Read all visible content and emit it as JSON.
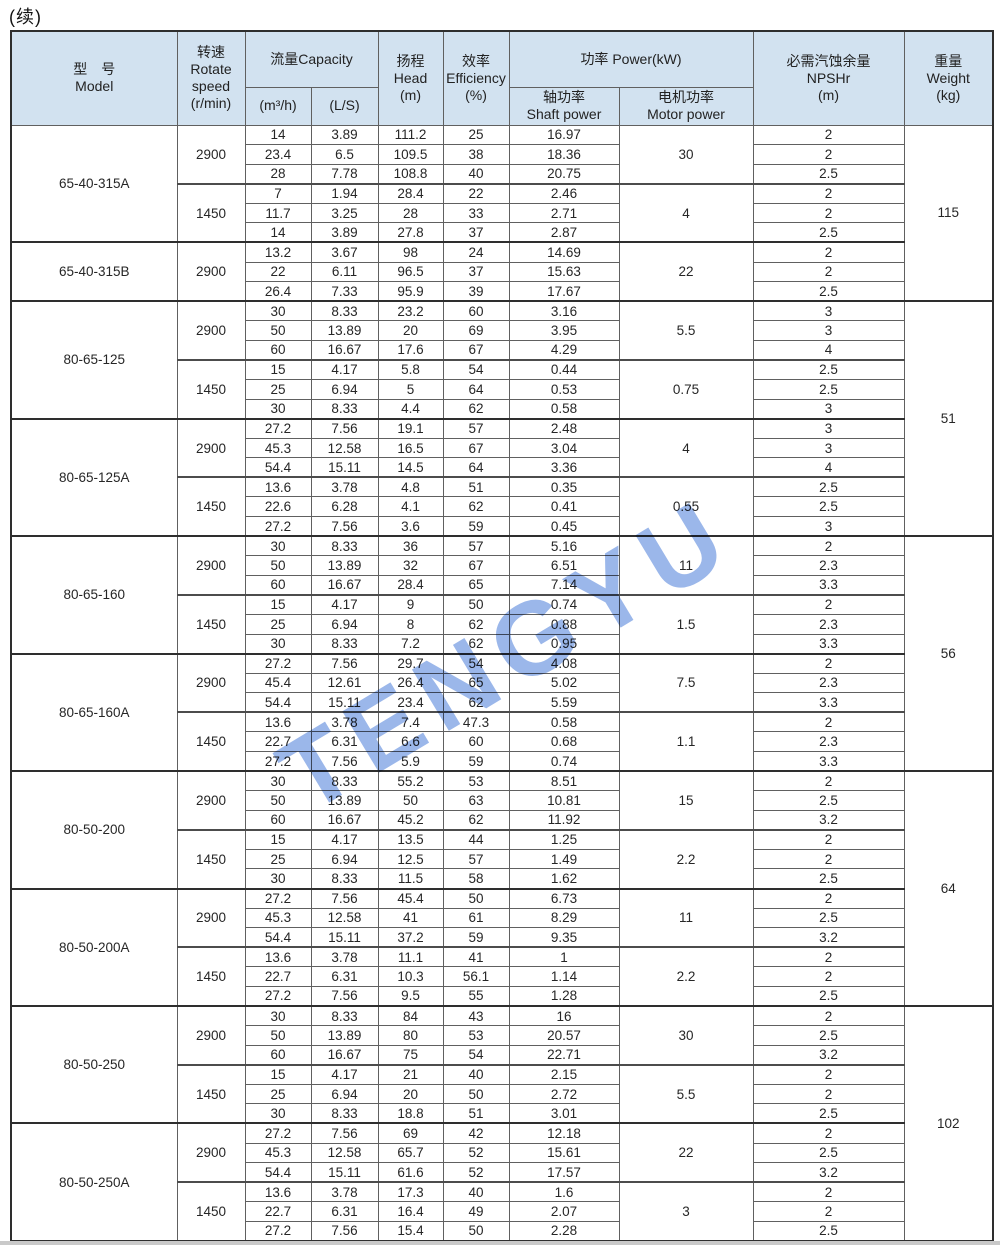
{
  "page": {
    "continued_label": "(续)"
  },
  "watermark": {
    "text": "TENGYU",
    "color": "#9bb7ea"
  },
  "table": {
    "header": {
      "model": [
        "型　号",
        "Model"
      ],
      "speed": [
        "转速",
        "Rotate",
        "speed",
        "(r/min)"
      ],
      "capacity": "流量Capacity",
      "capacity_units": [
        "(m³/h)",
        "(L/S)"
      ],
      "head": [
        "扬程",
        "Head",
        "(m)"
      ],
      "efficiency": [
        "效率",
        "Efficiency",
        "(%)"
      ],
      "power": "功率 Power(kW)",
      "shaft_power": [
        "轴功率",
        "Shaft power"
      ],
      "motor_power": [
        "电机功率",
        "Motor power"
      ],
      "npshr": [
        "必需汽蚀余量",
        "NPSHr",
        "(m)"
      ],
      "weight": [
        "重量",
        "Weight",
        "(kg)"
      ]
    },
    "row_fields": [
      "m3h",
      "ls",
      "head",
      "efficiency",
      "shaft_power",
      "npshr"
    ],
    "weight_groups": [
      {
        "weight": "115",
        "models": [
          {
            "name": "65-40-315A",
            "speed_groups": [
              {
                "speed": "2900",
                "motor_power": "30",
                "rows": [
                  [
                    "14",
                    "3.89",
                    "111.2",
                    "25",
                    "16.97",
                    "2"
                  ],
                  [
                    "23.4",
                    "6.5",
                    "109.5",
                    "38",
                    "18.36",
                    "2"
                  ],
                  [
                    "28",
                    "7.78",
                    "108.8",
                    "40",
                    "20.75",
                    "2.5"
                  ]
                ]
              },
              {
                "speed": "1450",
                "motor_power": "4",
                "rows": [
                  [
                    "7",
                    "1.94",
                    "28.4",
                    "22",
                    "2.46",
                    "2"
                  ],
                  [
                    "11.7",
                    "3.25",
                    "28",
                    "33",
                    "2.71",
                    "2"
                  ],
                  [
                    "14",
                    "3.89",
                    "27.8",
                    "37",
                    "2.87",
                    "2.5"
                  ]
                ]
              }
            ]
          },
          {
            "name": "65-40-315B",
            "speed_groups": [
              {
                "speed": "2900",
                "motor_power": "22",
                "rows": [
                  [
                    "13.2",
                    "3.67",
                    "98",
                    "24",
                    "14.69",
                    "2"
                  ],
                  [
                    "22",
                    "6.11",
                    "96.5",
                    "37",
                    "15.63",
                    "2"
                  ],
                  [
                    "26.4",
                    "7.33",
                    "95.9",
                    "39",
                    "17.67",
                    "2.5"
                  ]
                ]
              }
            ]
          }
        ]
      },
      {
        "weight": "51",
        "models": [
          {
            "name": "80-65-125",
            "speed_groups": [
              {
                "speed": "2900",
                "motor_power": "5.5",
                "rows": [
                  [
                    "30",
                    "8.33",
                    "23.2",
                    "60",
                    "3.16",
                    "3"
                  ],
                  [
                    "50",
                    "13.89",
                    "20",
                    "69",
                    "3.95",
                    "3"
                  ],
                  [
                    "60",
                    "16.67",
                    "17.6",
                    "67",
                    "4.29",
                    "4"
                  ]
                ]
              },
              {
                "speed": "1450",
                "motor_power": "0.75",
                "rows": [
                  [
                    "15",
                    "4.17",
                    "5.8",
                    "54",
                    "0.44",
                    "2.5"
                  ],
                  [
                    "25",
                    "6.94",
                    "5",
                    "64",
                    "0.53",
                    "2.5"
                  ],
                  [
                    "30",
                    "8.33",
                    "4.4",
                    "62",
                    "0.58",
                    "3"
                  ]
                ]
              }
            ]
          },
          {
            "name": "80-65-125A",
            "speed_groups": [
              {
                "speed": "2900",
                "motor_power": "4",
                "rows": [
                  [
                    "27.2",
                    "7.56",
                    "19.1",
                    "57",
                    "2.48",
                    "3"
                  ],
                  [
                    "45.3",
                    "12.58",
                    "16.5",
                    "67",
                    "3.04",
                    "3"
                  ],
                  [
                    "54.4",
                    "15.11",
                    "14.5",
                    "64",
                    "3.36",
                    "4"
                  ]
                ]
              },
              {
                "speed": "1450",
                "motor_power": "0.55",
                "rows": [
                  [
                    "13.6",
                    "3.78",
                    "4.8",
                    "51",
                    "0.35",
                    "2.5"
                  ],
                  [
                    "22.6",
                    "6.28",
                    "4.1",
                    "62",
                    "0.41",
                    "2.5"
                  ],
                  [
                    "27.2",
                    "7.56",
                    "3.6",
                    "59",
                    "0.45",
                    "3"
                  ]
                ]
              }
            ]
          }
        ]
      },
      {
        "weight": "56",
        "models": [
          {
            "name": "80-65-160",
            "speed_groups": [
              {
                "speed": "2900",
                "motor_power": "11",
                "rows": [
                  [
                    "30",
                    "8.33",
                    "36",
                    "57",
                    "5.16",
                    "2"
                  ],
                  [
                    "50",
                    "13.89",
                    "32",
                    "67",
                    "6.51",
                    "2.3"
                  ],
                  [
                    "60",
                    "16.67",
                    "28.4",
                    "65",
                    "7.14",
                    "3.3"
                  ]
                ]
              },
              {
                "speed": "1450",
                "motor_power": "1.5",
                "rows": [
                  [
                    "15",
                    "4.17",
                    "9",
                    "50",
                    "0.74",
                    "2"
                  ],
                  [
                    "25",
                    "6.94",
                    "8",
                    "62",
                    "0.88",
                    "2.3"
                  ],
                  [
                    "30",
                    "8.33",
                    "7.2",
                    "62",
                    "0.95",
                    "3.3"
                  ]
                ]
              }
            ]
          },
          {
            "name": "80-65-160A",
            "speed_groups": [
              {
                "speed": "2900",
                "motor_power": "7.5",
                "rows": [
                  [
                    "27.2",
                    "7.56",
                    "29.7",
                    "54",
                    "4.08",
                    "2"
                  ],
                  [
                    "45.4",
                    "12.61",
                    "26.4",
                    "65",
                    "5.02",
                    "2.3"
                  ],
                  [
                    "54.4",
                    "15.11",
                    "23.4",
                    "62",
                    "5.59",
                    "3.3"
                  ]
                ]
              },
              {
                "speed": "1450",
                "motor_power": "1.1",
                "rows": [
                  [
                    "13.6",
                    "3.78",
                    "7.4",
                    "47.3",
                    "0.58",
                    "2"
                  ],
                  [
                    "22.7",
                    "6.31",
                    "6.6",
                    "60",
                    "0.68",
                    "2.3"
                  ],
                  [
                    "27.2",
                    "7.56",
                    "5.9",
                    "59",
                    "0.74",
                    "3.3"
                  ]
                ]
              }
            ]
          }
        ]
      },
      {
        "weight": "64",
        "models": [
          {
            "name": "80-50-200",
            "speed_groups": [
              {
                "speed": "2900",
                "motor_power": "15",
                "rows": [
                  [
                    "30",
                    "8.33",
                    "55.2",
                    "53",
                    "8.51",
                    "2"
                  ],
                  [
                    "50",
                    "13.89",
                    "50",
                    "63",
                    "10.81",
                    "2.5"
                  ],
                  [
                    "60",
                    "16.67",
                    "45.2",
                    "62",
                    "11.92",
                    "3.2"
                  ]
                ]
              },
              {
                "speed": "1450",
                "motor_power": "2.2",
                "rows": [
                  [
                    "15",
                    "4.17",
                    "13.5",
                    "44",
                    "1.25",
                    "2"
                  ],
                  [
                    "25",
                    "6.94",
                    "12.5",
                    "57",
                    "1.49",
                    "2"
                  ],
                  [
                    "30",
                    "8.33",
                    "11.5",
                    "58",
                    "1.62",
                    "2.5"
                  ]
                ]
              }
            ]
          },
          {
            "name": "80-50-200A",
            "speed_groups": [
              {
                "speed": "2900",
                "motor_power": "11",
                "rows": [
                  [
                    "27.2",
                    "7.56",
                    "45.4",
                    "50",
                    "6.73",
                    "2"
                  ],
                  [
                    "45.3",
                    "12.58",
                    "41",
                    "61",
                    "8.29",
                    "2.5"
                  ],
                  [
                    "54.4",
                    "15.11",
                    "37.2",
                    "59",
                    "9.35",
                    "3.2"
                  ]
                ]
              },
              {
                "speed": "1450",
                "motor_power": "2.2",
                "rows": [
                  [
                    "13.6",
                    "3.78",
                    "11.1",
                    "41",
                    "1",
                    "2"
                  ],
                  [
                    "22.7",
                    "6.31",
                    "10.3",
                    "56.1",
                    "1.14",
                    "2"
                  ],
                  [
                    "27.2",
                    "7.56",
                    "9.5",
                    "55",
                    "1.28",
                    "2.5"
                  ]
                ]
              }
            ]
          }
        ]
      },
      {
        "weight": "102",
        "models": [
          {
            "name": "80-50-250",
            "speed_groups": [
              {
                "speed": "2900",
                "motor_power": "30",
                "rows": [
                  [
                    "30",
                    "8.33",
                    "84",
                    "43",
                    "16",
                    "2"
                  ],
                  [
                    "50",
                    "13.89",
                    "80",
                    "53",
                    "20.57",
                    "2.5"
                  ],
                  [
                    "60",
                    "16.67",
                    "75",
                    "54",
                    "22.71",
                    "3.2"
                  ]
                ]
              },
              {
                "speed": "1450",
                "motor_power": "5.5",
                "rows": [
                  [
                    "15",
                    "4.17",
                    "21",
                    "40",
                    "2.15",
                    "2"
                  ],
                  [
                    "25",
                    "6.94",
                    "20",
                    "50",
                    "2.72",
                    "2"
                  ],
                  [
                    "30",
                    "8.33",
                    "18.8",
                    "51",
                    "3.01",
                    "2.5"
                  ]
                ]
              }
            ]
          },
          {
            "name": "80-50-250A",
            "speed_groups": [
              {
                "speed": "2900",
                "motor_power": "22",
                "rows": [
                  [
                    "27.2",
                    "7.56",
                    "69",
                    "42",
                    "12.18",
                    "2"
                  ],
                  [
                    "45.3",
                    "12.58",
                    "65.7",
                    "52",
                    "15.61",
                    "2.5"
                  ],
                  [
                    "54.4",
                    "15.11",
                    "61.6",
                    "52",
                    "17.57",
                    "3.2"
                  ]
                ]
              },
              {
                "speed": "1450",
                "motor_power": "3",
                "rows": [
                  [
                    "13.6",
                    "3.78",
                    "17.3",
                    "40",
                    "1.6",
                    "2"
                  ],
                  [
                    "22.7",
                    "6.31",
                    "16.4",
                    "49",
                    "2.07",
                    "2"
                  ],
                  [
                    "27.2",
                    "7.56",
                    "15.4",
                    "50",
                    "2.28",
                    "2.5"
                  ]
                ]
              }
            ]
          }
        ]
      }
    ]
  }
}
